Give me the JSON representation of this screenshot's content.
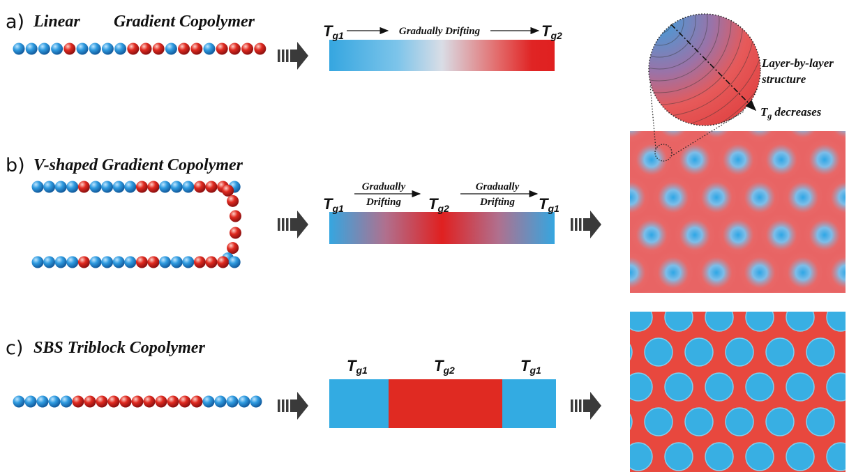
{
  "panel_a": {
    "letter": "a)",
    "title_1": "Linear",
    "title_2": "Gradient Copolymer",
    "start": {
      "t": "T",
      "sub": "g1"
    },
    "middle": "Gradually Drifting",
    "end": {
      "t": "T",
      "sub": "g2"
    }
  },
  "panel_b": {
    "letter": "b)",
    "title": "V-shaped Gradient Copolymer",
    "labels": [
      {
        "t": "T",
        "sub": "g1"
      },
      {
        "t": "T",
        "sub": "g2"
      },
      {
        "t": "T",
        "sub": "g1"
      }
    ],
    "drift_1": [
      "Gradually",
      "Drifting"
    ],
    "drift_2": [
      "Gradually",
      "Drifting"
    ]
  },
  "panel_c": {
    "letter": "c)",
    "title": "SBS Triblock Copolymer",
    "labels": [
      {
        "t": "T",
        "sub": "g1"
      },
      {
        "t": "T",
        "sub": "g2"
      },
      {
        "t": "T",
        "sub": "g1"
      }
    ]
  },
  "inset": {
    "label_1": "Layer-by-layer",
    "label_2": "structure",
    "axis": {
      "t": "T",
      "sub": "g",
      "rest": "decreases"
    }
  }
}
